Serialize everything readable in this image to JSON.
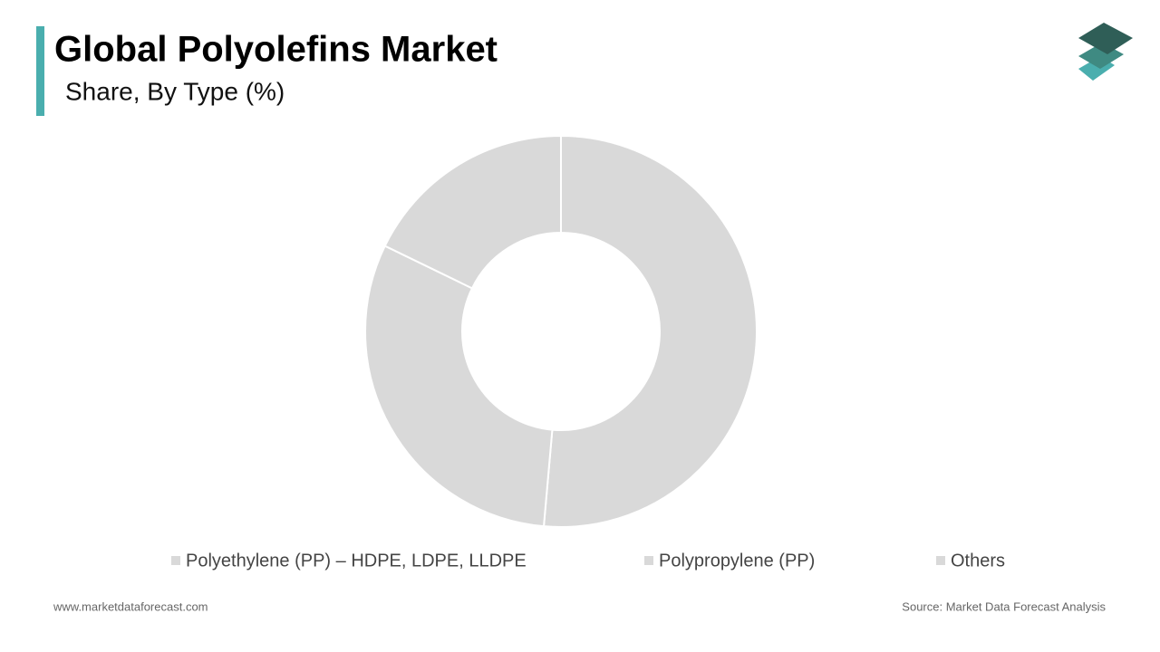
{
  "chart_data": {
    "type": "donut",
    "title": "Global Polyolefins Market",
    "subtitle": "Share, By Type (%)",
    "categories": [
      "Polyethylene (PP) – HDPE, LDPE, LLDPE",
      "Polypropylene (PP)",
      "Others"
    ],
    "values": [
      51.4,
      30.8,
      17.8
    ],
    "colors": [
      "#d9d9d9",
      "#d9d9d9",
      "#d9d9d9"
    ],
    "website": "www.marketdataforecast.com",
    "source": "Source: Market Data Forecast Analysis"
  }
}
